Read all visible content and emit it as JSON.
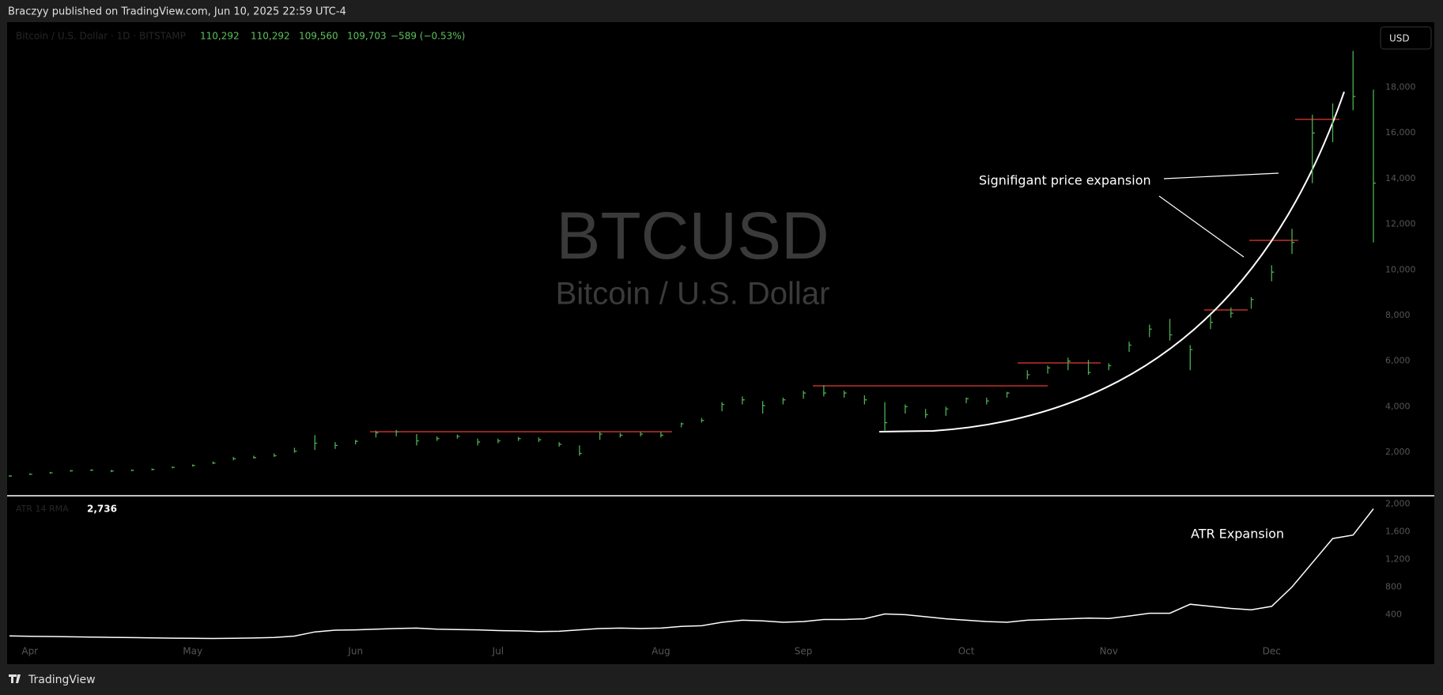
{
  "header": {
    "published": "Braczyy published on TradingView.com, Jun 10, 2025 22:59 UTC-4"
  },
  "footer": {
    "brand": "TradingView"
  },
  "chart_data": [
    {
      "type": "ohlc",
      "title": "BTCUSD",
      "subtitle": "Bitcoin / U.S. Dollar",
      "legend_label": "Bitcoin / U.S. Dollar · 1D · BITSTAMP",
      "readout": [
        "110,292",
        "110,292",
        "109,560",
        "109,703",
        "−589 (−0.53%)"
      ],
      "currency_button": "USD",
      "annotation": "Signifigant price expansion",
      "color": "#4caf50",
      "categories": [
        null,
        "Apr",
        null,
        null,
        null,
        null,
        null,
        null,
        null,
        "May",
        null,
        null,
        null,
        null,
        null,
        null,
        null,
        "Jun",
        null,
        null,
        null,
        null,
        null,
        null,
        "Jul",
        null,
        null,
        null,
        null,
        null,
        null,
        null,
        "Aug",
        null,
        null,
        null,
        null,
        null,
        null,
        "Sep",
        null,
        null,
        null,
        null,
        null,
        null,
        null,
        "Oct",
        null,
        null,
        null,
        null,
        null,
        null,
        "Nov",
        null,
        null,
        null,
        null,
        null,
        null,
        null,
        "Dec",
        null,
        null,
        null,
        null,
        null
      ],
      "high": [
        1000,
        1080,
        1140,
        1220,
        1250,
        1230,
        1250,
        1290,
        1380,
        1470,
        1600,
        1800,
        1850,
        1950,
        2200,
        2750,
        2450,
        2550,
        2950,
        2980,
        2800,
        2700,
        2780,
        2600,
        2600,
        2680,
        2650,
        2450,
        2300,
        2900,
        2850,
        2900,
        2900,
        3300,
        3500,
        4200,
        4450,
        4250,
        4400,
        4700,
        4950,
        4700,
        4500,
        4200,
        4100,
        3900,
        4000,
        4400,
        4400,
        4650,
        5600,
        5800,
        6150,
        6050,
        5900,
        6850,
        7600,
        7850,
        6700,
        8000,
        8350,
        8800,
        10200,
        11800,
        16800,
        17300,
        19600,
        17900
      ],
      "low": [
        930,
        1000,
        1060,
        1150,
        1180,
        1130,
        1170,
        1210,
        1300,
        1380,
        1480,
        1650,
        1720,
        1800,
        1980,
        2100,
        2150,
        2350,
        2650,
        2700,
        2300,
        2500,
        2600,
        2300,
        2400,
        2500,
        2450,
        2250,
        1850,
        2550,
        2650,
        2700,
        2650,
        3100,
        3300,
        3800,
        4100,
        3700,
        4100,
        4350,
        4450,
        4400,
        4100,
        2950,
        3700,
        3500,
        3600,
        4150,
        4100,
        4400,
        5200,
        5450,
        5600,
        5400,
        5600,
        6400,
        7050,
        6900,
        5600,
        7400,
        7900,
        8300,
        9500,
        10700,
        13800,
        15600,
        17000,
        11200
      ],
      "close": [
        960,
        1040,
        1100,
        1190,
        1220,
        1180,
        1210,
        1250,
        1340,
        1420,
        1530,
        1720,
        1770,
        1850,
        2050,
        2400,
        2300,
        2480,
        2850,
        2900,
        2500,
        2600,
        2700,
        2450,
        2500,
        2600,
        2550,
        2350,
        1950,
        2800,
        2750,
        2800,
        2750,
        3250,
        3400,
        4100,
        4300,
        4050,
        4300,
        4600,
        4600,
        4600,
        4300,
        3300,
        4000,
        3650,
        3900,
        4350,
        4250,
        4600,
        5400,
        5700,
        6000,
        5500,
        5800,
        6700,
        7400,
        7150,
        6500,
        7700,
        8100,
        8700,
        9900,
        11200,
        16000,
        16700,
        17600,
        13800
      ],
      "ylim": [
        130,
        20860
      ],
      "yticks": [
        {
          "value": 2000,
          "label": "2,000"
        },
        {
          "value": 4000,
          "label": "4,000"
        },
        {
          "value": 6000,
          "label": "6,000"
        },
        {
          "value": 8000,
          "label": "8,000"
        },
        {
          "value": 10000,
          "label": "10,000"
        },
        {
          "value": 12000,
          "label": "12,000"
        },
        {
          "value": 14000,
          "label": "14,000"
        },
        {
          "value": 16000,
          "label": "16,000"
        },
        {
          "value": 18000,
          "label": "18,000"
        }
      ]
    },
    {
      "type": "line",
      "name": "ATR 14 RMA",
      "readout": "2,736",
      "annotation": "ATR Expansion",
      "color": "#ffffff",
      "values": [
        93,
        88,
        84,
        80,
        76,
        72,
        68,
        64,
        60,
        58,
        56,
        58,
        62,
        70,
        90,
        150,
        175,
        180,
        190,
        200,
        205,
        190,
        185,
        180,
        170,
        165,
        155,
        160,
        180,
        200,
        205,
        200,
        205,
        230,
        240,
        290,
        320,
        310,
        290,
        300,
        330,
        330,
        340,
        410,
        400,
        370,
        340,
        320,
        300,
        290,
        320,
        330,
        340,
        350,
        345,
        380,
        420,
        420,
        550,
        520,
        490,
        470,
        520,
        800,
        1150,
        1500,
        1550,
        1930
      ],
      "ylim": [
        -293,
        2107
      ],
      "yticks": [
        {
          "value": 400,
          "label": "400"
        },
        {
          "value": 800,
          "label": "800"
        },
        {
          "value": 1200,
          "label": "1,200"
        },
        {
          "value": 1600,
          "label": "1,600"
        },
        {
          "value": 2000,
          "label": "2,000"
        }
      ]
    }
  ]
}
